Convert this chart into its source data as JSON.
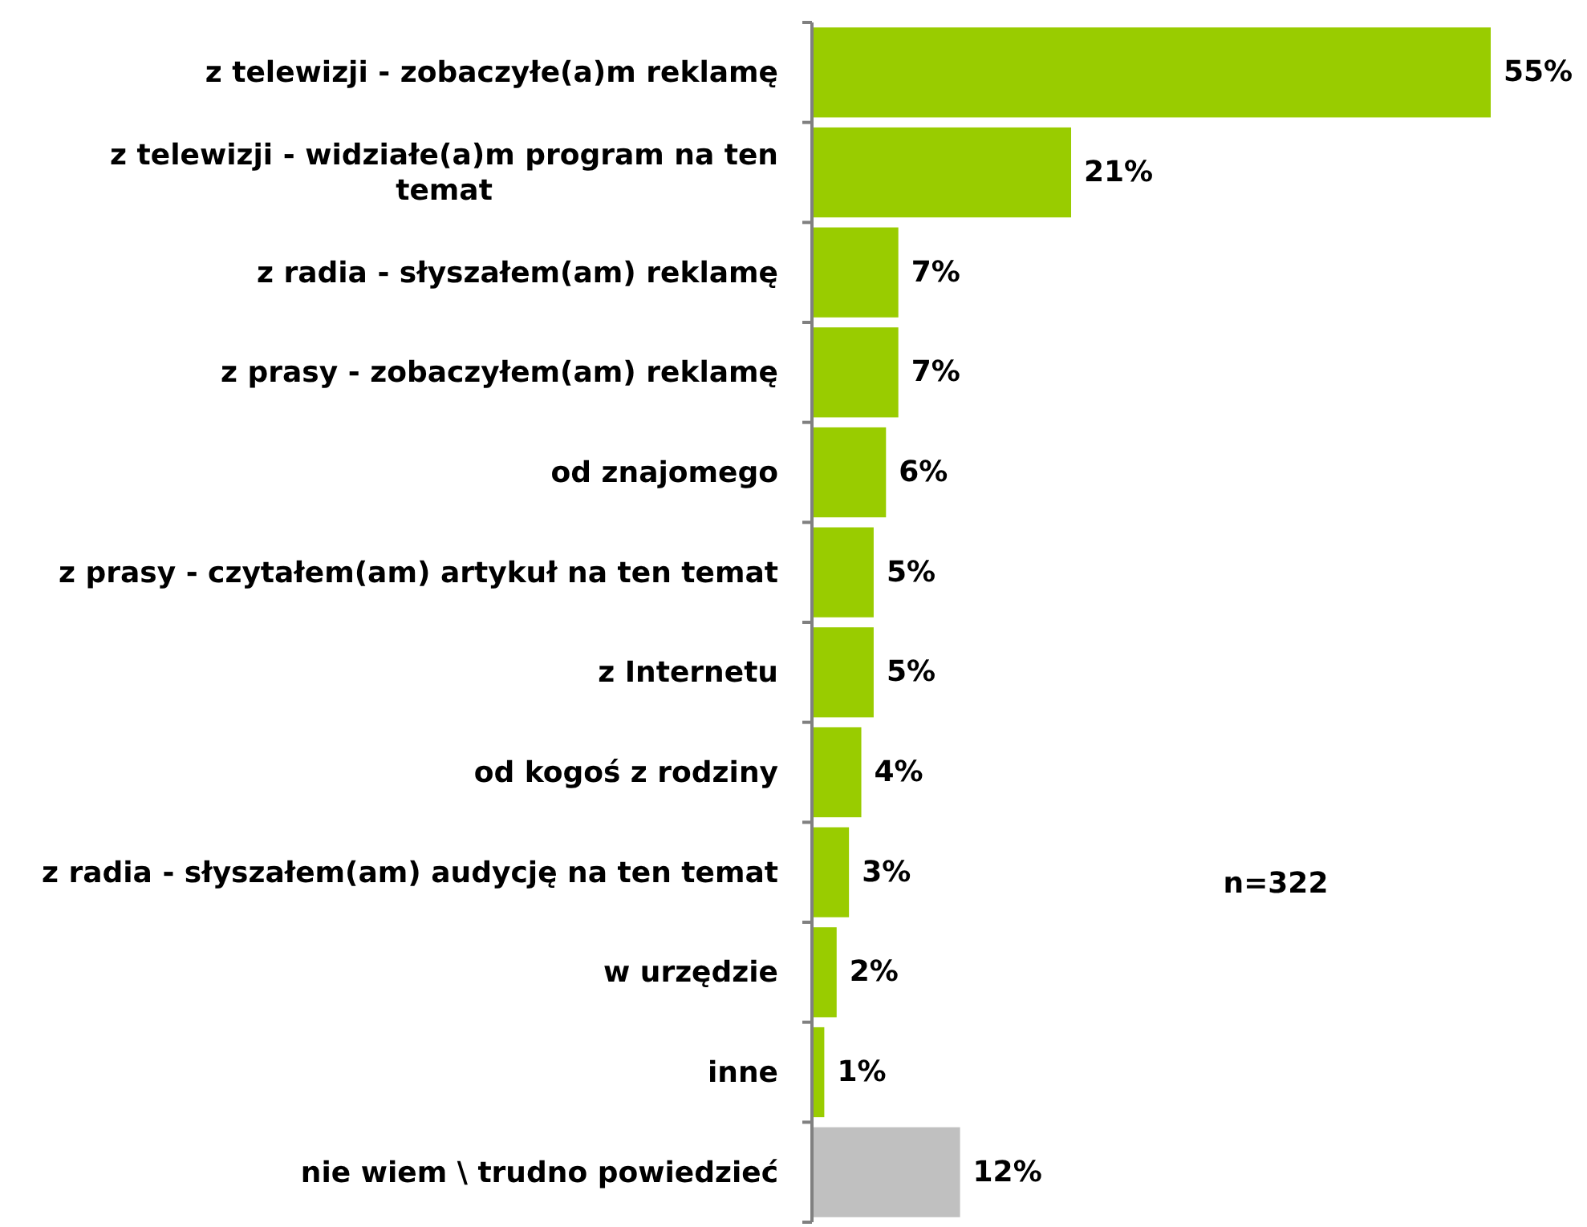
{
  "chart_data": {
    "type": "bar",
    "orientation": "horizontal",
    "categories": [
      "z telewizji - zobaczyłe(a)m reklamę",
      "z telewizji - widziałe(a)m program na ten temat",
      "z radia - słyszałem(am) reklamę",
      "z prasy - zobaczyłem(am) reklamę",
      "od znajomego",
      "z prasy - czytałem(am) artykuł na ten temat",
      "z Internetu",
      "od kogoś z rodziny",
      "z radia - słyszałem(am) audycję na ten temat",
      "w urzędzie",
      "inne",
      "nie wiem \\ trudno powiedzieć"
    ],
    "values": [
      55,
      21,
      7,
      7,
      6,
      5,
      5,
      4,
      3,
      2,
      1,
      12
    ],
    "colors": [
      "#99cc00",
      "#99cc00",
      "#99cc00",
      "#99cc00",
      "#99cc00",
      "#99cc00",
      "#99cc00",
      "#99cc00",
      "#99cc00",
      "#99cc00",
      "#99cc00",
      "#c0c0c0"
    ],
    "value_labels": [
      "55%",
      "21%",
      "7%",
      "7%",
      "6%",
      "5%",
      "5%",
      "4%",
      "3%",
      "2%",
      "1%",
      "12%"
    ],
    "annotations": [
      "n=322"
    ]
  }
}
